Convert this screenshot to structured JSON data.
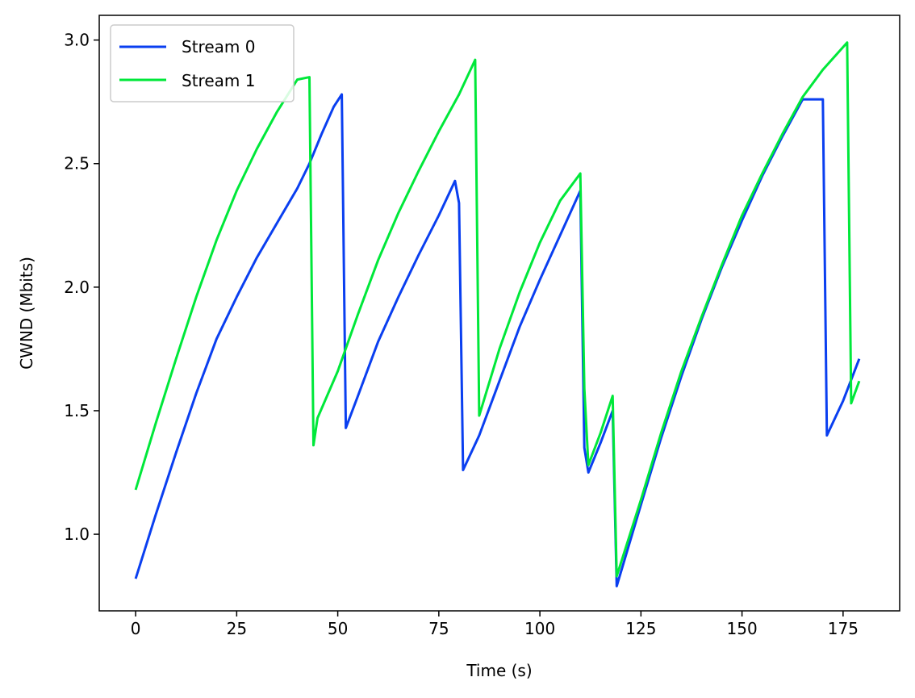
{
  "chart_data": {
    "type": "line",
    "title": "",
    "xlabel": "Time (s)",
    "ylabel": "CWND (Mbits)",
    "xlim": [
      -9,
      189
    ],
    "ylim": [
      0.69,
      3.1
    ],
    "xticks": [
      0,
      25,
      50,
      75,
      100,
      125,
      150,
      175
    ],
    "yticks": [
      1.0,
      1.5,
      2.0,
      2.5,
      3.0
    ],
    "xtick_labels": [
      "0",
      "25",
      "50",
      "75",
      "100",
      "125",
      "150",
      "175"
    ],
    "ytick_labels": [
      "1.0",
      "1.5",
      "2.0",
      "2.5",
      "3.0"
    ],
    "grid": false,
    "legend_position": "top-left",
    "series": [
      {
        "name": "Stream 0",
        "color": "#0a3ff0",
        "x": [
          0,
          5,
          10,
          15,
          20,
          25,
          30,
          35,
          40,
          43,
          46,
          49,
          51,
          52,
          55,
          60,
          65,
          70,
          75,
          79,
          80,
          81,
          85,
          90,
          95,
          100,
          105,
          110,
          111,
          112,
          115,
          118,
          119,
          125,
          130,
          135,
          140,
          145,
          150,
          155,
          160,
          165,
          170,
          171,
          175,
          179
        ],
        "y": [
          0.82,
          1.08,
          1.33,
          1.57,
          1.79,
          1.96,
          2.12,
          2.26,
          2.4,
          2.5,
          2.62,
          2.73,
          2.78,
          1.43,
          1.56,
          1.78,
          1.96,
          2.13,
          2.29,
          2.43,
          2.34,
          1.26,
          1.4,
          1.62,
          1.84,
          2.03,
          2.21,
          2.39,
          1.35,
          1.25,
          1.37,
          1.5,
          0.79,
          1.12,
          1.39,
          1.64,
          1.87,
          2.08,
          2.27,
          2.45,
          2.61,
          2.76,
          2.76,
          1.4,
          1.54,
          1.71
        ]
      },
      {
        "name": "Stream 1",
        "color": "#00e83a",
        "x": [
          0,
          5,
          10,
          15,
          20,
          25,
          30,
          35,
          40,
          43,
          44,
          45,
          50,
          55,
          60,
          65,
          70,
          75,
          80,
          84,
          85,
          90,
          95,
          100,
          105,
          110,
          111,
          112,
          115,
          118,
          119,
          125,
          130,
          135,
          140,
          145,
          150,
          155,
          160,
          165,
          170,
          176,
          177,
          179
        ],
        "y": [
          1.18,
          1.45,
          1.71,
          1.96,
          2.19,
          2.39,
          2.56,
          2.71,
          2.84,
          2.85,
          1.36,
          1.47,
          1.66,
          1.89,
          2.11,
          2.3,
          2.47,
          2.63,
          2.78,
          2.92,
          1.48,
          1.75,
          1.98,
          2.18,
          2.35,
          2.46,
          1.59,
          1.28,
          1.41,
          1.56,
          0.83,
          1.14,
          1.41,
          1.66,
          1.88,
          2.09,
          2.29,
          2.46,
          2.62,
          2.77,
          2.88,
          2.99,
          1.53,
          1.62
        ]
      }
    ]
  }
}
